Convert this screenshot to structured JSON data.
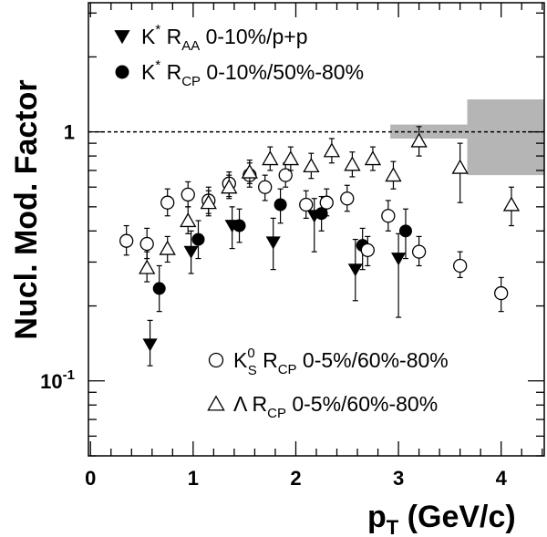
{
  "chart_data": {
    "type": "scatter",
    "title": "",
    "xlabel": "p",
    "xlabel_sub": "T",
    "xlabel_unit": " (GeV/c)",
    "ylabel": "Nucl. Mod. Factor",
    "xlim": [
      -0.02,
      4.42
    ],
    "ylim": [
      0.05,
      3.3
    ],
    "yscale": "log",
    "x_ticks": [
      {
        "value": 0,
        "label": "0"
      },
      {
        "value": 1,
        "label": "1"
      },
      {
        "value": 2,
        "label": "2"
      },
      {
        "value": 3,
        "label": "3"
      },
      {
        "value": 4,
        "label": "4"
      }
    ],
    "y_ticks": [
      {
        "value": 1,
        "label": "1",
        "sup": ""
      },
      {
        "value": 0.1,
        "label": "10",
        "sup": "-1"
      }
    ],
    "reference_line": 1,
    "grid": false,
    "series": [
      {
        "name": "K* RAA 0-10%/p+p",
        "marker": "triangle-down-filled",
        "legend": {
          "main": "K",
          "sup": "*",
          "mid": " R",
          "sub": "AA",
          "rest": " 0-10%/p+p"
        },
        "points": [
          {
            "x": 0.58,
            "y": 0.14,
            "lo": 0.115,
            "hi": 0.175
          },
          {
            "x": 0.98,
            "y": 0.33,
            "lo": 0.27,
            "hi": 0.4
          },
          {
            "x": 1.38,
            "y": 0.42,
            "lo": 0.34,
            "hi": 0.5
          },
          {
            "x": 1.78,
            "y": 0.36,
            "lo": 0.28,
            "hi": 0.45
          },
          {
            "x": 2.18,
            "y": 0.46,
            "lo": 0.33,
            "hi": 0.54
          },
          {
            "x": 2.58,
            "y": 0.28,
            "lo": 0.21,
            "hi": 0.37
          },
          {
            "x": 3.0,
            "y": 0.31,
            "lo": 0.18,
            "hi": 0.39
          }
        ]
      },
      {
        "name": "K* RCP 0-10%/50%-80%",
        "marker": "circle-filled",
        "legend": {
          "main": "K",
          "sup": "*",
          "mid": " R",
          "sub": "CP",
          "rest": " 0-10%/50%-80%"
        },
        "points": [
          {
            "x": 0.67,
            "y": 0.235,
            "lo": 0.19,
            "hi": 0.29
          },
          {
            "x": 1.05,
            "y": 0.37,
            "lo": 0.31,
            "hi": 0.44
          },
          {
            "x": 1.45,
            "y": 0.42,
            "lo": 0.36,
            "hi": 0.49
          },
          {
            "x": 1.85,
            "y": 0.51,
            "lo": 0.43,
            "hi": 0.59
          },
          {
            "x": 2.25,
            "y": 0.47,
            "lo": 0.4,
            "hi": 0.55
          },
          {
            "x": 2.65,
            "y": 0.35,
            "lo": 0.28,
            "hi": 0.41
          },
          {
            "x": 3.07,
            "y": 0.4,
            "lo": 0.31,
            "hi": 0.49
          }
        ]
      },
      {
        "name": "K0S RCP 0-5%/60%-80%",
        "marker": "circle-open",
        "legend": {
          "main": "K",
          "sup": "0",
          "subscript2": "S",
          "mid": " R",
          "sub": "CP",
          "rest": " 0-5%/60%-80%"
        },
        "points": [
          {
            "x": 0.35,
            "y": 0.365,
            "lo": 0.32,
            "hi": 0.42
          },
          {
            "x": 0.55,
            "y": 0.355,
            "lo": 0.31,
            "hi": 0.41
          },
          {
            "x": 0.75,
            "y": 0.52,
            "lo": 0.46,
            "hi": 0.59
          },
          {
            "x": 0.95,
            "y": 0.56,
            "lo": 0.5,
            "hi": 0.63
          },
          {
            "x": 1.15,
            "y": 0.53,
            "lo": 0.47,
            "hi": 0.6
          },
          {
            "x": 1.35,
            "y": 0.62,
            "lo": 0.55,
            "hi": 0.69
          },
          {
            "x": 1.55,
            "y": 0.67,
            "lo": 0.6,
            "hi": 0.75
          },
          {
            "x": 1.7,
            "y": 0.6,
            "lo": 0.53,
            "hi": 0.67
          },
          {
            "x": 1.9,
            "y": 0.67,
            "lo": 0.6,
            "hi": 0.75
          },
          {
            "x": 2.1,
            "y": 0.51,
            "lo": 0.45,
            "hi": 0.58
          },
          {
            "x": 2.3,
            "y": 0.52,
            "lo": 0.46,
            "hi": 0.59
          },
          {
            "x": 2.5,
            "y": 0.54,
            "lo": 0.48,
            "hi": 0.61
          },
          {
            "x": 2.7,
            "y": 0.335,
            "lo": 0.29,
            "hi": 0.38
          },
          {
            "x": 2.9,
            "y": 0.46,
            "lo": 0.4,
            "hi": 0.53
          },
          {
            "x": 3.2,
            "y": 0.33,
            "lo": 0.29,
            "hi": 0.38
          },
          {
            "x": 3.6,
            "y": 0.29,
            "lo": 0.26,
            "hi": 0.33
          },
          {
            "x": 4.0,
            "y": 0.225,
            "lo": 0.19,
            "hi": 0.26
          }
        ]
      },
      {
        "name": "Λ RCP 0-5%/60%-80%",
        "marker": "triangle-up-open",
        "legend": {
          "main": "Λ",
          "sup": "",
          "mid": " R",
          "sub": "CP",
          "rest": " 0-5%/60%-80%"
        },
        "points": [
          {
            "x": 0.55,
            "y": 0.285,
            "lo": 0.25,
            "hi": 0.33
          },
          {
            "x": 0.75,
            "y": 0.34,
            "lo": 0.3,
            "hi": 0.38
          },
          {
            "x": 0.95,
            "y": 0.44,
            "lo": 0.39,
            "hi": 0.5
          },
          {
            "x": 1.15,
            "y": 0.52,
            "lo": 0.46,
            "hi": 0.58
          },
          {
            "x": 1.35,
            "y": 0.6,
            "lo": 0.54,
            "hi": 0.67
          },
          {
            "x": 1.55,
            "y": 0.69,
            "lo": 0.62,
            "hi": 0.77
          },
          {
            "x": 1.75,
            "y": 0.78,
            "lo": 0.7,
            "hi": 0.87
          },
          {
            "x": 1.95,
            "y": 0.78,
            "lo": 0.7,
            "hi": 0.87
          },
          {
            "x": 2.15,
            "y": 0.73,
            "lo": 0.65,
            "hi": 0.82
          },
          {
            "x": 2.35,
            "y": 0.84,
            "lo": 0.75,
            "hi": 0.94
          },
          {
            "x": 2.55,
            "y": 0.74,
            "lo": 0.66,
            "hi": 0.83
          },
          {
            "x": 2.75,
            "y": 0.78,
            "lo": 0.7,
            "hi": 0.87
          },
          {
            "x": 2.95,
            "y": 0.67,
            "lo": 0.59,
            "hi": 0.76
          },
          {
            "x": 3.2,
            "y": 0.92,
            "lo": 0.8,
            "hi": 1.05
          },
          {
            "x": 3.6,
            "y": 0.72,
            "lo": 0.52,
            "hi": 0.9
          },
          {
            "x": 4.1,
            "y": 0.51,
            "lo": 0.42,
            "hi": 0.6
          }
        ]
      }
    ],
    "systematic_bands": [
      {
        "x0": 2.92,
        "x1": 3.67,
        "y0": 0.94,
        "y1": 1.07
      },
      {
        "x0": 3.67,
        "x1": 4.42,
        "y0": 0.67,
        "y1": 1.35
      }
    ],
    "colors": {
      "axis": "#000000",
      "band": "#b5b5b5",
      "marker": "#000000"
    }
  }
}
